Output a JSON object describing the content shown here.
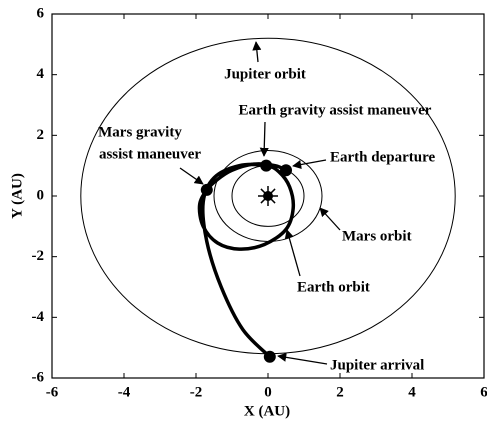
{
  "chart_data": {
    "type": "orbit",
    "xlabel": "X (AU)",
    "ylabel": "Y (AU)",
    "xlim": [
      -6,
      6
    ],
    "ylim": [
      -6,
      6
    ],
    "xticks": [
      -6,
      -4,
      -2,
      0,
      2,
      4,
      6
    ],
    "yticks": [
      -6,
      -4,
      -2,
      0,
      2,
      4,
      6
    ],
    "orbits": [
      {
        "name": "Earth orbit",
        "radius": 1
      },
      {
        "name": "Mars orbit",
        "radius": 1.5
      },
      {
        "name": "Jupiter orbit",
        "radius": 5.2
      }
    ],
    "trajectory": {
      "color": "#000",
      "x": [
        0.5,
        0.2,
        -0.4,
        -1.0,
        -1.4,
        -1.7,
        -1.9,
        -1.8,
        -1.4,
        -0.8,
        -0.1,
        0.5,
        0.7,
        0.6,
        0.3,
        -0.05,
        -0.8,
        -1.5,
        -1.8,
        -1.7,
        -1.3,
        -0.7,
        0.05
      ],
      "y": [
        0.85,
        1.0,
        1.05,
        0.85,
        0.55,
        0.2,
        -0.3,
        -1.0,
        -1.55,
        -1.75,
        -1.6,
        -1.1,
        -0.4,
        0.3,
        0.8,
        1.0,
        1.0,
        0.6,
        -0.2,
        -1.5,
        -3.0,
        -4.4,
        -5.3
      ]
    },
    "events": [
      {
        "name": "Earth departure",
        "x": 0.5,
        "y": 0.85
      },
      {
        "name": "Mars gravity assist maneuver",
        "x": -1.7,
        "y": 0.2
      },
      {
        "name": "Earth gravity assist maneuver",
        "x": -0.05,
        "y": 1.0
      },
      {
        "name": "Jupiter arrival",
        "x": 0.05,
        "y": -5.3
      }
    ],
    "annotations": [
      {
        "lines": [
          "Jupiter orbit"
        ]
      },
      {
        "lines": [
          "Earth gravity assist maneuver"
        ]
      },
      {
        "lines": [
          "Mars gravity",
          "assist maneuver"
        ]
      },
      {
        "lines": [
          "Earth departure"
        ]
      },
      {
        "lines": [
          "Mars orbit"
        ]
      },
      {
        "lines": [
          "Earth orbit"
        ]
      },
      {
        "lines": [
          "Jupiter arrival"
        ]
      }
    ]
  }
}
